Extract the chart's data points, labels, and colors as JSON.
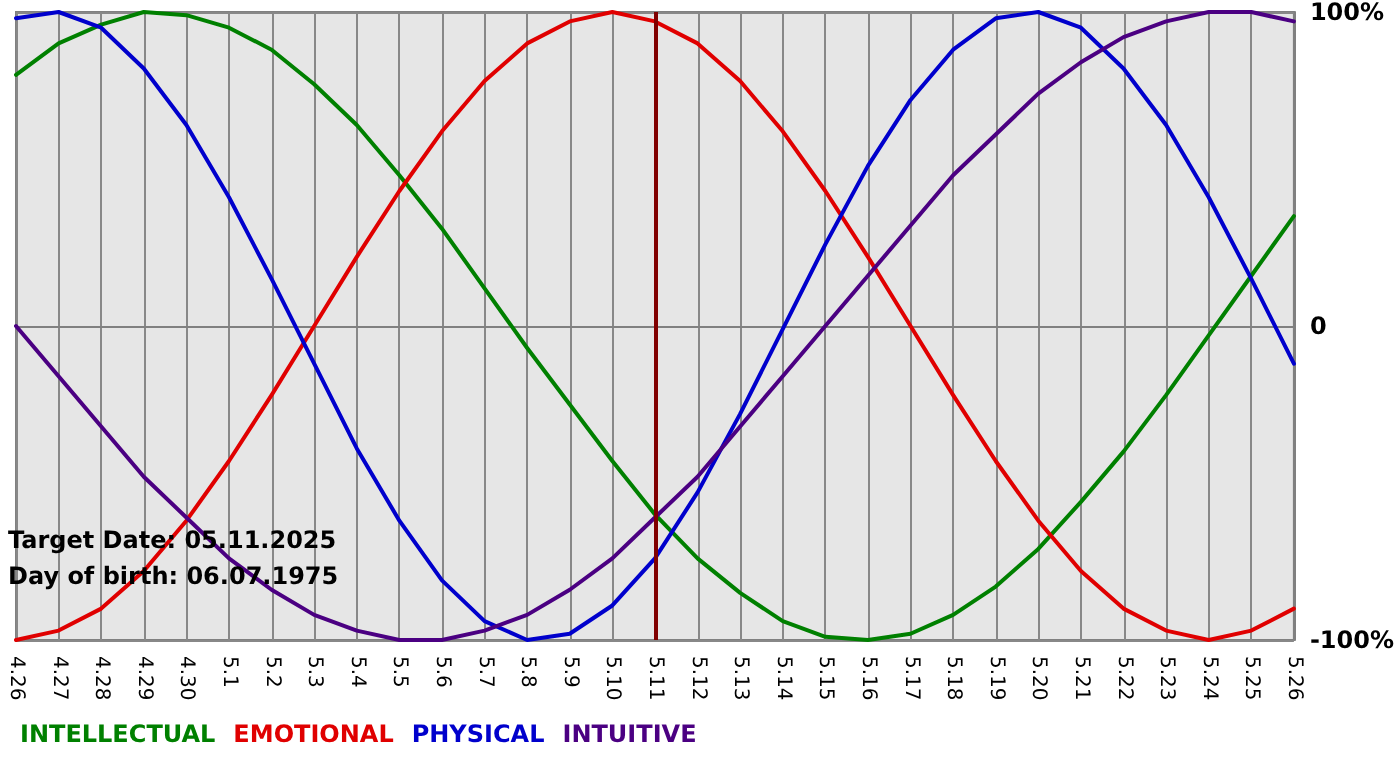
{
  "chart_data": {
    "type": "line",
    "categories": [
      "4.26",
      "4.27",
      "4.28",
      "4.29",
      "4.30",
      "5.1",
      "5.2",
      "5.3",
      "5.4",
      "5.5",
      "5.6",
      "5.7",
      "5.8",
      "5.9",
      "5.10",
      "5.11",
      "5.12",
      "5.13",
      "5.14",
      "5.15",
      "5.16",
      "5.17",
      "5.18",
      "5.19",
      "5.20",
      "5.21",
      "5.22",
      "5.23",
      "5.24",
      "5.25",
      "5.26"
    ],
    "series": [
      {
        "name": "INTELLECTUAL",
        "color": "#008000",
        "values": [
          80,
          90,
          96,
          100,
          99,
          95,
          88,
          77,
          64,
          48,
          31,
          12,
          -7,
          -25,
          -43,
          -60,
          -74,
          -85,
          -94,
          -99,
          -100,
          -98,
          -92,
          -83,
          -71,
          -56,
          -40,
          -22,
          -3,
          16,
          35
        ]
      },
      {
        "name": "EMOTIONAL",
        "color": "#e00000",
        "values": [
          -100,
          -97,
          -90,
          -78,
          -62,
          -43,
          -22,
          0,
          22,
          43,
          62,
          78,
          90,
          97,
          100,
          97,
          90,
          78,
          62,
          43,
          22,
          0,
          -22,
          -43,
          -62,
          -78,
          -90,
          -97,
          -100,
          -97,
          -90
        ]
      },
      {
        "name": "PHYSICAL",
        "color": "#0000cc",
        "values": [
          98,
          100,
          95,
          82,
          64,
          41,
          15,
          -12,
          -39,
          -62,
          -81,
          -94,
          -100,
          -98,
          -89,
          -74,
          -53,
          -28,
          -1,
          26,
          51,
          72,
          88,
          98,
          100,
          95,
          82,
          64,
          41,
          15,
          -12
        ]
      },
      {
        "name": "INTUITIVE",
        "color": "#4b0082",
        "values": [
          0,
          -16,
          -32,
          -48,
          -61,
          -74,
          -84,
          -92,
          -97,
          -100,
          -100,
          -97,
          -92,
          -84,
          -74,
          -61,
          -48,
          -32,
          -16,
          0,
          16,
          32,
          48,
          61,
          74,
          84,
          92,
          97,
          100,
          100,
          97
        ]
      }
    ],
    "ylim": [
      -100,
      100
    ],
    "yticks": [
      {
        "value": -100,
        "label": "-100%"
      },
      0,
      {
        "value": 100,
        "label": "100%"
      }
    ],
    "ref_lines": [
      {
        "axis": "x",
        "value": "5.11",
        "color": "#800000"
      }
    ],
    "annotations": [
      "Target Date: 05.11.2025",
      "Day of birth: 06.07.1975"
    ],
    "grid": true,
    "legend": "bottom left",
    "marker": "none",
    "line_style": "solid"
  }
}
